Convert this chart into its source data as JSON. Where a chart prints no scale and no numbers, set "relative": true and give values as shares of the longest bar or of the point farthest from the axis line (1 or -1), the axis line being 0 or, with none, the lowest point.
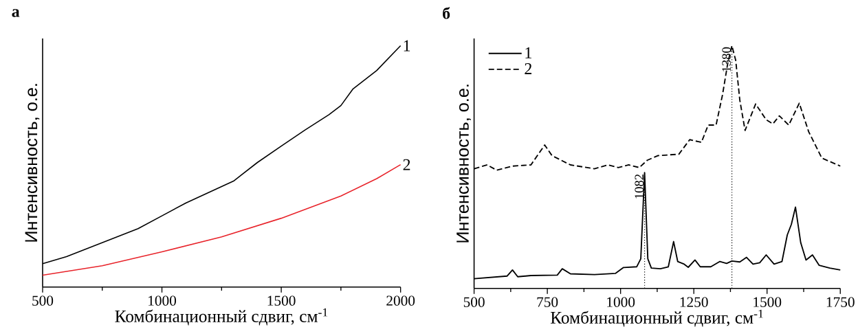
{
  "chart_data": [
    {
      "type": "line",
      "title": "а",
      "xlabel": "Комбинационный сдвиг, см$^{-1}$",
      "ylabel": "Интенсивность, о.е.",
      "relative": true,
      "legend": false,
      "xlim": [
        500,
        2000
      ],
      "xticks": [
        500,
        1000,
        1500,
        2000
      ],
      "series": [
        {
          "name": "1",
          "color": "#000000",
          "x": [
            500,
            600,
            750,
            900,
            1000,
            1100,
            1300,
            1400,
            1500,
            1600,
            1700,
            1750,
            1800,
            1900,
            2000
          ],
          "values": [
            0.097,
            0.126,
            0.184,
            0.242,
            0.295,
            0.348,
            0.439,
            0.516,
            0.584,
            0.651,
            0.714,
            0.752,
            0.82,
            0.897,
            1.0
          ]
        },
        {
          "name": "2",
          "color": "#e8232a",
          "x": [
            500,
            750,
            1000,
            1250,
            1500,
            1750,
            1900,
            2000
          ],
          "values": [
            0.049,
            0.088,
            0.146,
            0.208,
            0.285,
            0.377,
            0.449,
            0.507
          ]
        }
      ]
    },
    {
      "type": "line",
      "title": "б",
      "xlabel": "Комбинационный сдвиг, см$^{-1}$",
      "ylabel": "Интенсивность, о.е.",
      "relative": true,
      "legend": "top left",
      "xlim": [
        500,
        1750
      ],
      "xticks": [
        500,
        750,
        1000,
        1250,
        1500,
        1750
      ],
      "series": [
        {
          "name": "1",
          "color": "#000000",
          "line_style": "solid",
          "x": [
            500,
            613,
            631,
            649,
            694,
            784,
            801,
            829,
            911,
            983,
            1010,
            1055,
            1069,
            1082,
            1093,
            1105,
            1136,
            1163,
            1181,
            1195,
            1217,
            1231,
            1254,
            1272,
            1308,
            1339,
            1362,
            1380,
            1407,
            1430,
            1452,
            1475,
            1497,
            1524,
            1551,
            1569,
            1583,
            1597,
            1615,
            1633,
            1655,
            1678,
            1714,
            1750
          ],
          "values": [
            0.04,
            0.051,
            0.076,
            0.048,
            0.053,
            0.055,
            0.081,
            0.06,
            0.057,
            0.062,
            0.086,
            0.089,
            0.122,
            0.477,
            0.122,
            0.084,
            0.081,
            0.089,
            0.193,
            0.111,
            0.1,
            0.087,
            0.117,
            0.089,
            0.089,
            0.111,
            0.103,
            0.113,
            0.109,
            0.128,
            0.1,
            0.106,
            0.138,
            0.1,
            0.111,
            0.22,
            0.264,
            0.335,
            0.188,
            0.117,
            0.138,
            0.095,
            0.084,
            0.076
          ]
        },
        {
          "name": "2",
          "color": "#000000",
          "line_style": "dashed",
          "x": [
            500,
            545,
            577,
            631,
            694,
            741,
            766,
            829,
            911,
            956,
            992,
            1028,
            1064,
            1091,
            1127,
            1199,
            1236,
            1276,
            1299,
            1326,
            1348,
            1366,
            1380,
            1393,
            1407,
            1425,
            1461,
            1497,
            1520,
            1542,
            1574,
            1610,
            1642,
            1687,
            1750
          ],
          "values": [
            0.493,
            0.509,
            0.487,
            0.504,
            0.509,
            0.591,
            0.547,
            0.509,
            0.493,
            0.509,
            0.498,
            0.509,
            0.498,
            0.528,
            0.547,
            0.553,
            0.613,
            0.602,
            0.673,
            0.673,
            0.798,
            0.929,
            1.0,
            0.94,
            0.776,
            0.651,
            0.76,
            0.695,
            0.678,
            0.711,
            0.673,
            0.763,
            0.646,
            0.537,
            0.504
          ]
        }
      ],
      "ref_lines": [
        {
          "axis": "x",
          "value": 1082,
          "label": "1082",
          "color": "#000000",
          "line_style": "dotted"
        },
        {
          "axis": "x",
          "value": 1380,
          "label": "1380",
          "color": "#000000",
          "line_style": "dotted"
        }
      ]
    }
  ]
}
